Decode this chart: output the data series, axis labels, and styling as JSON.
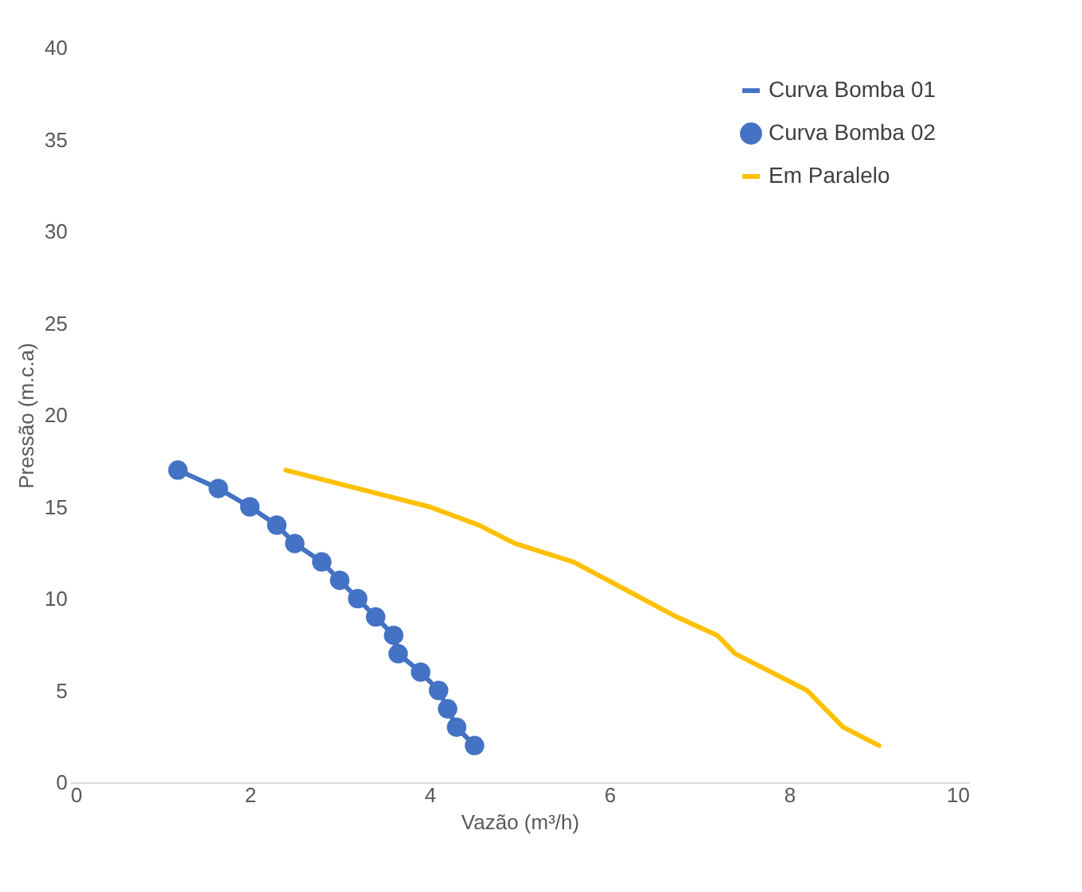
{
  "chart_data": {
    "type": "line",
    "xlabel": "Vazão (m³/h)",
    "ylabel": "Pressão (m.c.a)",
    "xlim": [
      0,
      10
    ],
    "xticks": [
      0,
      2,
      4,
      6,
      8,
      10
    ],
    "ylim": [
      0,
      40
    ],
    "yticks": [
      0,
      5,
      10,
      15,
      20,
      25,
      30,
      35,
      40
    ],
    "grid": false,
    "legend": "top right",
    "series": [
      {
        "name": "Curva Bomba 01",
        "color": "#4472c4",
        "marker": "none",
        "x": [
          1.2,
          1.65,
          2.0,
          2.3,
          2.5,
          2.8,
          3.0,
          3.2,
          3.4,
          3.6,
          3.65,
          3.9,
          4.1,
          4.2,
          4.3,
          4.5
        ],
        "values": [
          17,
          16,
          15,
          14,
          13,
          12,
          11,
          10,
          9,
          8,
          7,
          6,
          5,
          4,
          3,
          2
        ]
      },
      {
        "name": "Curva Bomba 02",
        "type": "scatter",
        "color": "#4472c4",
        "marker": "circle",
        "x": [
          1.2,
          1.65,
          2.0,
          2.3,
          2.5,
          2.8,
          3.0,
          3.2,
          3.4,
          3.6,
          3.65,
          3.9,
          4.1,
          4.2,
          4.3,
          4.5
        ],
        "values": [
          17,
          16,
          15,
          14,
          13,
          12,
          11,
          10,
          9,
          8,
          7,
          6,
          5,
          4,
          3,
          2
        ]
      },
      {
        "name": "Em Paralelo",
        "color": "#ffc000",
        "marker": "none",
        "x": [
          2.4,
          4.0,
          4.55,
          4.95,
          5.6,
          6.75,
          7.2,
          7.4,
          8.2,
          8.6,
          9.0
        ],
        "values": [
          17,
          15,
          14,
          13,
          12,
          9,
          8,
          7,
          5,
          3,
          2
        ]
      }
    ]
  }
}
